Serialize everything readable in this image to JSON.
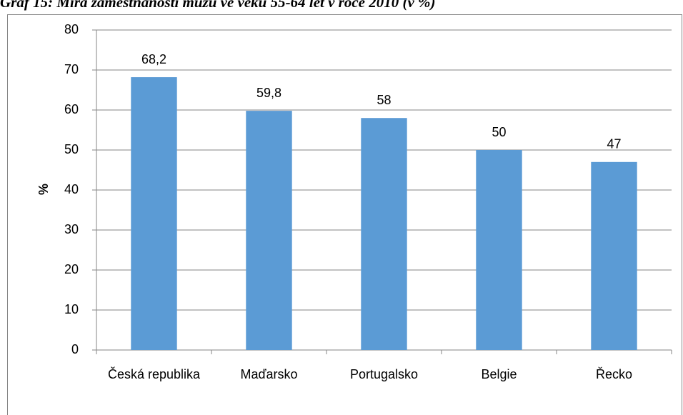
{
  "chart_data": {
    "type": "bar",
    "title": "Graf 15: Míra zaměstnanosti mužů ve věku 55-64 let v roce 2010 (v %)",
    "y_label": "%",
    "categories": [
      "Česká republika",
      "Maďarsko",
      "Portugalsko",
      "Belgie",
      "Řecko"
    ],
    "values": [
      68.2,
      59.8,
      58,
      50,
      47
    ],
    "value_labels": [
      "68,2",
      "59,8",
      "58",
      "50",
      "47"
    ],
    "color": "#5b9bd5",
    "ylim": [
      0,
      80
    ],
    "yticks": [
      0,
      10,
      20,
      30,
      40,
      50,
      60,
      70,
      80
    ],
    "grid": true
  }
}
